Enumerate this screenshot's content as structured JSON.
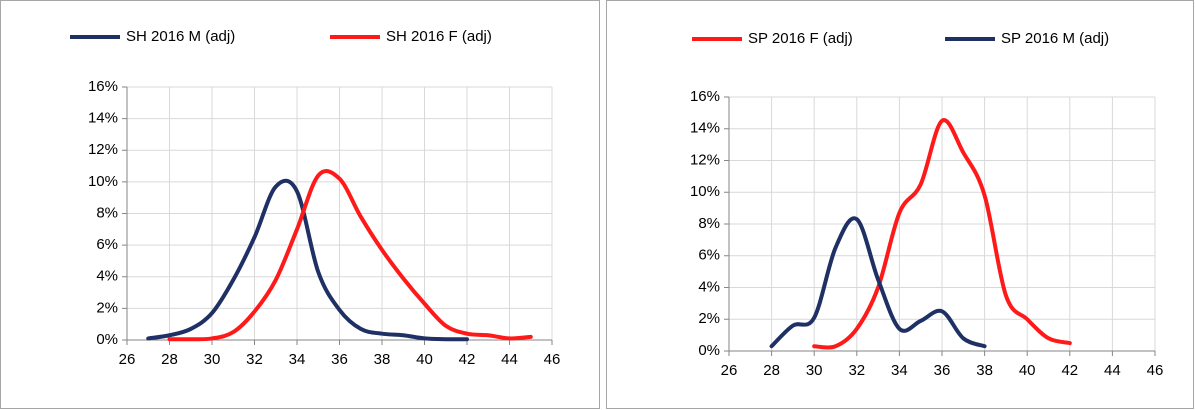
{
  "chart_data": [
    {
      "type": "line",
      "grid": true,
      "legend": "top",
      "x": [
        27,
        28,
        29,
        30,
        31,
        32,
        33,
        34,
        35,
        36,
        37,
        38,
        39,
        40,
        41,
        42,
        43,
        44,
        45
      ],
      "series": [
        {
          "name": "SH 2016 M (adj)",
          "color": "#1f3064",
          "values": [
            0.1,
            0.3,
            0.7,
            1.7,
            3.8,
            6.5,
            9.7,
            9.4,
            4.3,
            1.9,
            0.7,
            0.4,
            0.3,
            0.1,
            0.05,
            0.05,
            null,
            null,
            null
          ]
        },
        {
          "name": "SH 2016 F (adj)",
          "color": "#ff1a1a",
          "values": [
            null,
            0.05,
            0.05,
            0.1,
            0.5,
            1.8,
            3.8,
            7,
            10.4,
            10.2,
            7.8,
            5.7,
            3.9,
            2.3,
            0.9,
            0.4,
            0.3,
            0.1,
            0.2
          ]
        }
      ],
      "xlim": [
        26,
        46
      ],
      "xticks": [
        26,
        28,
        30,
        32,
        34,
        36,
        38,
        40,
        42,
        44,
        46
      ],
      "ylim": [
        0,
        16
      ],
      "yticks": [
        {
          "value": 0,
          "label": "0%"
        },
        {
          "value": 2,
          "label": "2%"
        },
        {
          "value": 4,
          "label": "4%"
        },
        {
          "value": 6,
          "label": "6%"
        },
        {
          "value": 8,
          "label": "8%"
        },
        {
          "value": 10,
          "label": "10%"
        },
        {
          "value": 12,
          "label": "12%"
        },
        {
          "value": 14,
          "label": "14%"
        },
        {
          "value": 16,
          "label": "16%"
        }
      ]
    },
    {
      "type": "line",
      "grid": true,
      "legend": "top",
      "x": [
        28,
        29,
        30,
        31,
        32,
        33,
        34,
        35,
        36,
        37,
        38,
        39,
        40,
        41,
        42
      ],
      "series": [
        {
          "name": "SP 2016 F (adj)",
          "color": "#ff1a1a",
          "values": [
            null,
            null,
            0.3,
            0.3,
            1.4,
            4,
            8.7,
            10.5,
            14.5,
            12.5,
            9.8,
            3.5,
            2,
            0.8,
            0.5
          ]
        },
        {
          "name": "SP 2016 M (adj)",
          "color": "#1f3064",
          "values": [
            0.3,
            1.6,
            2.1,
            6.5,
            8.3,
            4.5,
            1.4,
            1.9,
            2.5,
            0.8,
            0.3,
            null,
            null,
            null,
            null
          ]
        }
      ],
      "xlim": [
        26,
        46
      ],
      "xticks": [
        26,
        28,
        30,
        32,
        34,
        36,
        38,
        40,
        42,
        44,
        46
      ],
      "ylim": [
        0,
        16
      ],
      "yticks": [
        {
          "value": 0,
          "label": "0%"
        },
        {
          "value": 2,
          "label": "2%"
        },
        {
          "value": 4,
          "label": "4%"
        },
        {
          "value": 6,
          "label": "6%"
        },
        {
          "value": 8,
          "label": "8%"
        },
        {
          "value": 10,
          "label": "10%"
        },
        {
          "value": 12,
          "label": "12%"
        },
        {
          "value": 14,
          "label": "14%"
        },
        {
          "value": 16,
          "label": "16%"
        }
      ]
    }
  ]
}
